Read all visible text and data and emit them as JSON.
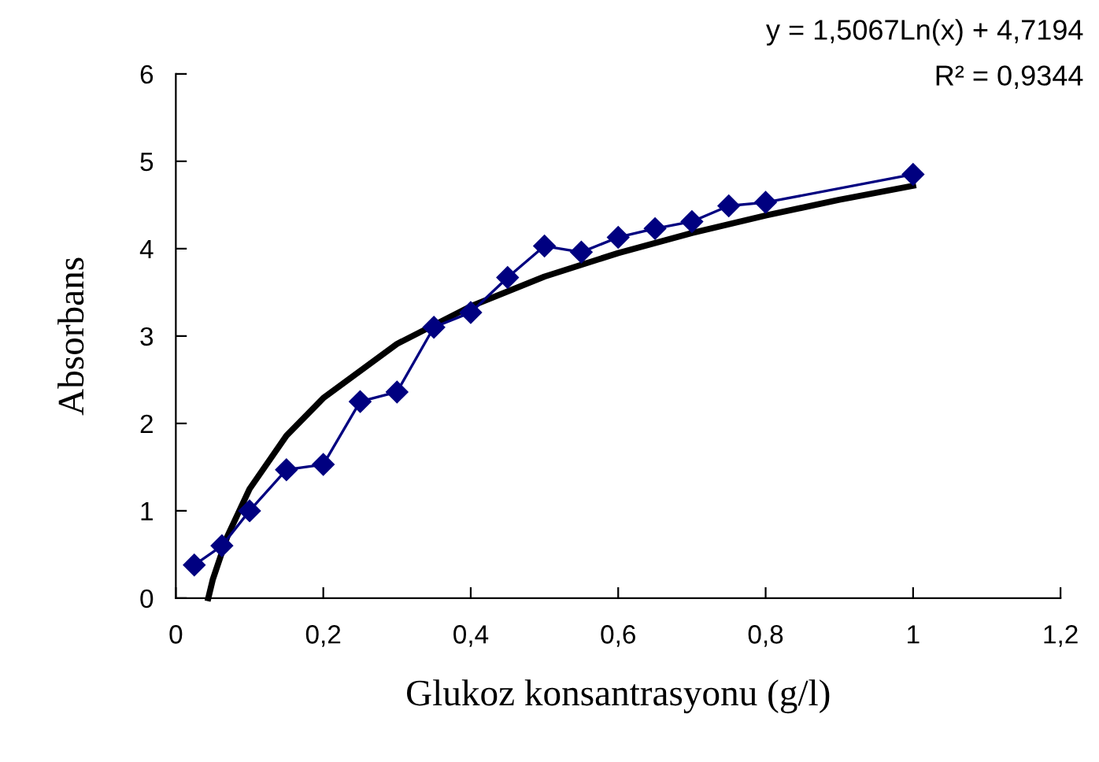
{
  "chart_data": {
    "type": "line",
    "xlabel": "Glukoz konsantrasyonu (g/l)",
    "ylabel": "Absorbans",
    "annotations": [
      "y = 1,5067Ln(x) + 4,7194",
      "R² = 0,9344"
    ],
    "series": [
      {
        "color": "#000080",
        "marker": "diamond",
        "x": [
          0.025,
          0.0625,
          0.1,
          0.15,
          0.2,
          0.25,
          0.3,
          0.35,
          0.4,
          0.45,
          0.5,
          0.55,
          0.6,
          0.65,
          0.7,
          0.75,
          0.8,
          1.0
        ],
        "values": [
          0.38,
          0.6,
          1.0,
          1.47,
          1.53,
          2.25,
          2.36,
          3.1,
          3.27,
          3.67,
          4.03,
          3.96,
          4.13,
          4.23,
          4.31,
          4.49,
          4.53,
          4.85
        ]
      },
      {
        "color": "#000000",
        "marker": "none",
        "x": [
          0.044,
          0.05,
          0.07,
          0.1,
          0.15,
          0.2,
          0.3,
          0.4,
          0.5,
          0.6,
          0.7,
          0.8,
          0.9,
          1.0
        ],
        "values": [
          0.0,
          0.21,
          0.71,
          1.25,
          1.86,
          2.29,
          2.91,
          3.34,
          3.68,
          3.95,
          4.18,
          4.38,
          4.56,
          4.72
        ]
      }
    ],
    "xlim": [
      0,
      1.2
    ],
    "xticks": [
      0,
      {
        "value": 0.2,
        "label": "0,2"
      },
      {
        "value": 0.4,
        "label": "0,4"
      },
      {
        "value": 0.6,
        "label": "0,6"
      },
      {
        "value": 0.8,
        "label": "0,8"
      },
      1,
      {
        "value": 1.2,
        "label": "1,2"
      }
    ],
    "ylim": [
      0,
      6
    ],
    "yticks": [
      0,
      1,
      2,
      3,
      4,
      5,
      6
    ],
    "grid": false,
    "legend": false
  }
}
